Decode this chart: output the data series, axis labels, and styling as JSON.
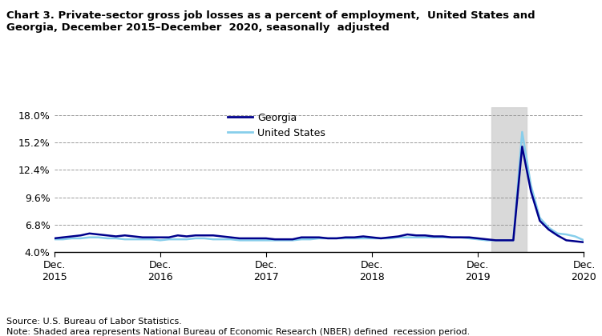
{
  "title": "Chart 3. Private-sector gross job losses as a percent of employment,  United States and\nGeorgia, December 2015–December  2020, seasonally  adjusted",
  "source": "Source: U.S. Bureau of Labor Statistics.",
  "note": "Note: Shaded area represents National Bureau of Economic Research (NBER) defined  recession period.",
  "legend_georgia": "Georgia",
  "legend_us": "United States",
  "georgia_color": "#00008B",
  "us_color": "#87CEEB",
  "recession_color": "#D3D3D3",
  "recession_alpha": 0.85,
  "recession_start": 49.5,
  "recession_end": 53.5,
  "ylim": [
    4.0,
    18.8
  ],
  "ymin_axis": 4.0,
  "yticks": [
    4.0,
    6.8,
    9.6,
    12.4,
    15.2,
    18.0
  ],
  "ytick_labels": [
    "4.0%",
    "6.8%",
    "9.6%",
    "12.4%",
    "15.2%",
    "18.0%"
  ],
  "xtick_positions": [
    0,
    12,
    24,
    36,
    48,
    60
  ],
  "xtick_labels": [
    "Dec.\n2015",
    "Dec.\n2016",
    "Dec.\n2017",
    "Dec.\n2018",
    "Dec.\n2019",
    "Dec.\n2020"
  ],
  "georgia": [
    5.4,
    5.5,
    5.6,
    5.7,
    5.9,
    5.8,
    5.7,
    5.6,
    5.7,
    5.6,
    5.5,
    5.5,
    5.5,
    5.5,
    5.7,
    5.6,
    5.7,
    5.7,
    5.7,
    5.6,
    5.5,
    5.4,
    5.4,
    5.4,
    5.4,
    5.3,
    5.3,
    5.3,
    5.5,
    5.5,
    5.5,
    5.4,
    5.4,
    5.5,
    5.5,
    5.6,
    5.5,
    5.4,
    5.5,
    5.6,
    5.8,
    5.7,
    5.7,
    5.6,
    5.6,
    5.5,
    5.5,
    5.5,
    5.4,
    5.3,
    5.2,
    5.2,
    5.2,
    14.8,
    10.2,
    7.2,
    6.3,
    5.7,
    5.2,
    5.1,
    5.0
  ],
  "us": [
    5.3,
    5.3,
    5.4,
    5.4,
    5.5,
    5.5,
    5.4,
    5.4,
    5.3,
    5.3,
    5.3,
    5.3,
    5.2,
    5.3,
    5.3,
    5.3,
    5.4,
    5.4,
    5.3,
    5.3,
    5.3,
    5.2,
    5.2,
    5.2,
    5.2,
    5.2,
    5.2,
    5.2,
    5.3,
    5.3,
    5.4,
    5.4,
    5.4,
    5.4,
    5.4,
    5.4,
    5.4,
    5.4,
    5.4,
    5.5,
    5.5,
    5.5,
    5.5,
    5.5,
    5.5,
    5.5,
    5.5,
    5.4,
    5.3,
    5.2,
    5.2,
    5.2,
    5.2,
    16.3,
    10.8,
    7.5,
    6.5,
    5.9,
    5.8,
    5.6,
    5.2
  ]
}
